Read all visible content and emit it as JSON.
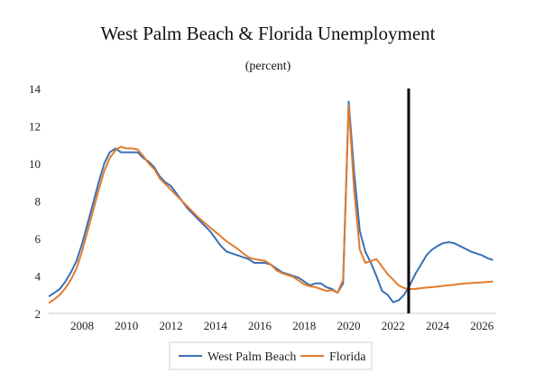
{
  "chart_data": {
    "type": "line",
    "title": "West Palm Beach & Florida Unemployment",
    "subtitle": "(percent)",
    "xlabel": "",
    "ylabel": "",
    "xlim": [
      2006.5,
      2026.6
    ],
    "ylim": [
      2,
      14
    ],
    "x_ticks": [
      2008,
      2010,
      2012,
      2014,
      2016,
      2018,
      2020,
      2022,
      2024,
      2026
    ],
    "y_ticks": [
      2,
      4,
      6,
      8,
      10,
      12,
      14
    ],
    "grid": false,
    "legend_position": "bottom",
    "vertical_marker_x": 2022.7,
    "series": [
      {
        "name": "West Palm Beach",
        "color": "#3a6fb5",
        "x": [
          2006.5,
          2006.75,
          2007.0,
          2007.25,
          2007.5,
          2007.75,
          2008.0,
          2008.25,
          2008.5,
          2008.75,
          2009.0,
          2009.25,
          2009.5,
          2009.75,
          2010.0,
          2010.25,
          2010.5,
          2010.75,
          2011.0,
          2011.25,
          2011.5,
          2011.75,
          2012.0,
          2012.25,
          2012.5,
          2012.75,
          2013.0,
          2013.25,
          2013.5,
          2013.75,
          2014.0,
          2014.25,
          2014.5,
          2014.75,
          2015.0,
          2015.25,
          2015.5,
          2015.75,
          2016.0,
          2016.25,
          2016.5,
          2016.75,
          2017.0,
          2017.25,
          2017.5,
          2017.75,
          2018.0,
          2018.25,
          2018.5,
          2018.75,
          2019.0,
          2019.25,
          2019.5,
          2019.75,
          2020.0,
          2020.25,
          2020.5,
          2020.75,
          2021.0,
          2021.25,
          2021.5,
          2021.75,
          2022.0,
          2022.25,
          2022.5,
          2022.75,
          2023.0,
          2023.25,
          2023.5,
          2023.75,
          2024.0,
          2024.25,
          2024.5,
          2024.75,
          2025.0,
          2025.25,
          2025.5,
          2025.75,
          2026.0,
          2026.25,
          2026.5
        ],
        "values": [
          2.9,
          3.1,
          3.3,
          3.7,
          4.2,
          4.8,
          5.7,
          6.8,
          7.9,
          9.0,
          10.0,
          10.6,
          10.8,
          10.6,
          10.6,
          10.6,
          10.6,
          10.3,
          10.1,
          9.8,
          9.3,
          9.0,
          8.8,
          8.4,
          8.0,
          7.6,
          7.3,
          7.0,
          6.7,
          6.4,
          6.0,
          5.6,
          5.3,
          5.2,
          5.1,
          5.0,
          4.9,
          4.7,
          4.7,
          4.7,
          4.6,
          4.4,
          4.2,
          4.1,
          4.0,
          3.9,
          3.7,
          3.5,
          3.6,
          3.6,
          3.4,
          3.3,
          3.1,
          3.6,
          13.3,
          9.5,
          6.4,
          5.3,
          4.7,
          4.0,
          3.2,
          3.0,
          2.6,
          2.7,
          3.0,
          3.5,
          4.1,
          4.6,
          5.1,
          5.4,
          5.6,
          5.75,
          5.8,
          5.75,
          5.6,
          5.45,
          5.3,
          5.2,
          5.1,
          4.95,
          4.85
        ]
      },
      {
        "name": "Florida",
        "color": "#e07b2e",
        "x": [
          2006.5,
          2006.75,
          2007.0,
          2007.25,
          2007.5,
          2007.75,
          2008.0,
          2008.25,
          2008.5,
          2008.75,
          2009.0,
          2009.25,
          2009.5,
          2009.75,
          2010.0,
          2010.25,
          2010.5,
          2010.75,
          2011.0,
          2011.25,
          2011.5,
          2011.75,
          2012.0,
          2012.25,
          2012.5,
          2012.75,
          2013.0,
          2013.25,
          2013.5,
          2013.75,
          2014.0,
          2014.25,
          2014.5,
          2014.75,
          2015.0,
          2015.25,
          2015.5,
          2015.75,
          2016.0,
          2016.25,
          2016.5,
          2016.75,
          2017.0,
          2017.25,
          2017.5,
          2017.75,
          2018.0,
          2018.25,
          2018.5,
          2018.75,
          2019.0,
          2019.25,
          2019.5,
          2019.75,
          2020.0,
          2020.25,
          2020.5,
          2020.75,
          2021.0,
          2021.25,
          2021.5,
          2021.75,
          2022.0,
          2022.25,
          2022.5,
          2022.75,
          2023.0,
          2023.25,
          2023.5,
          2023.75,
          2024.0,
          2024.25,
          2024.5,
          2024.75,
          2025.0,
          2025.25,
          2025.5,
          2025.75,
          2026.0,
          2026.25,
          2026.5
        ],
        "values": [
          2.55,
          2.75,
          3.0,
          3.35,
          3.8,
          4.4,
          5.3,
          6.4,
          7.5,
          8.6,
          9.6,
          10.3,
          10.7,
          10.9,
          10.8,
          10.8,
          10.75,
          10.4,
          10.0,
          9.7,
          9.2,
          8.9,
          8.6,
          8.3,
          8.0,
          7.7,
          7.4,
          7.1,
          6.85,
          6.6,
          6.35,
          6.1,
          5.85,
          5.65,
          5.45,
          5.2,
          5.0,
          4.9,
          4.85,
          4.8,
          4.6,
          4.3,
          4.15,
          4.05,
          3.95,
          3.75,
          3.55,
          3.45,
          3.4,
          3.3,
          3.2,
          3.25,
          3.1,
          3.8,
          13.1,
          8.5,
          5.4,
          4.7,
          4.8,
          4.9,
          4.5,
          4.1,
          3.8,
          3.5,
          3.35,
          3.3,
          3.3,
          3.35,
          3.38,
          3.4,
          3.43,
          3.47,
          3.5,
          3.53,
          3.57,
          3.6,
          3.62,
          3.64,
          3.66,
          3.68,
          3.7
        ]
      }
    ]
  }
}
